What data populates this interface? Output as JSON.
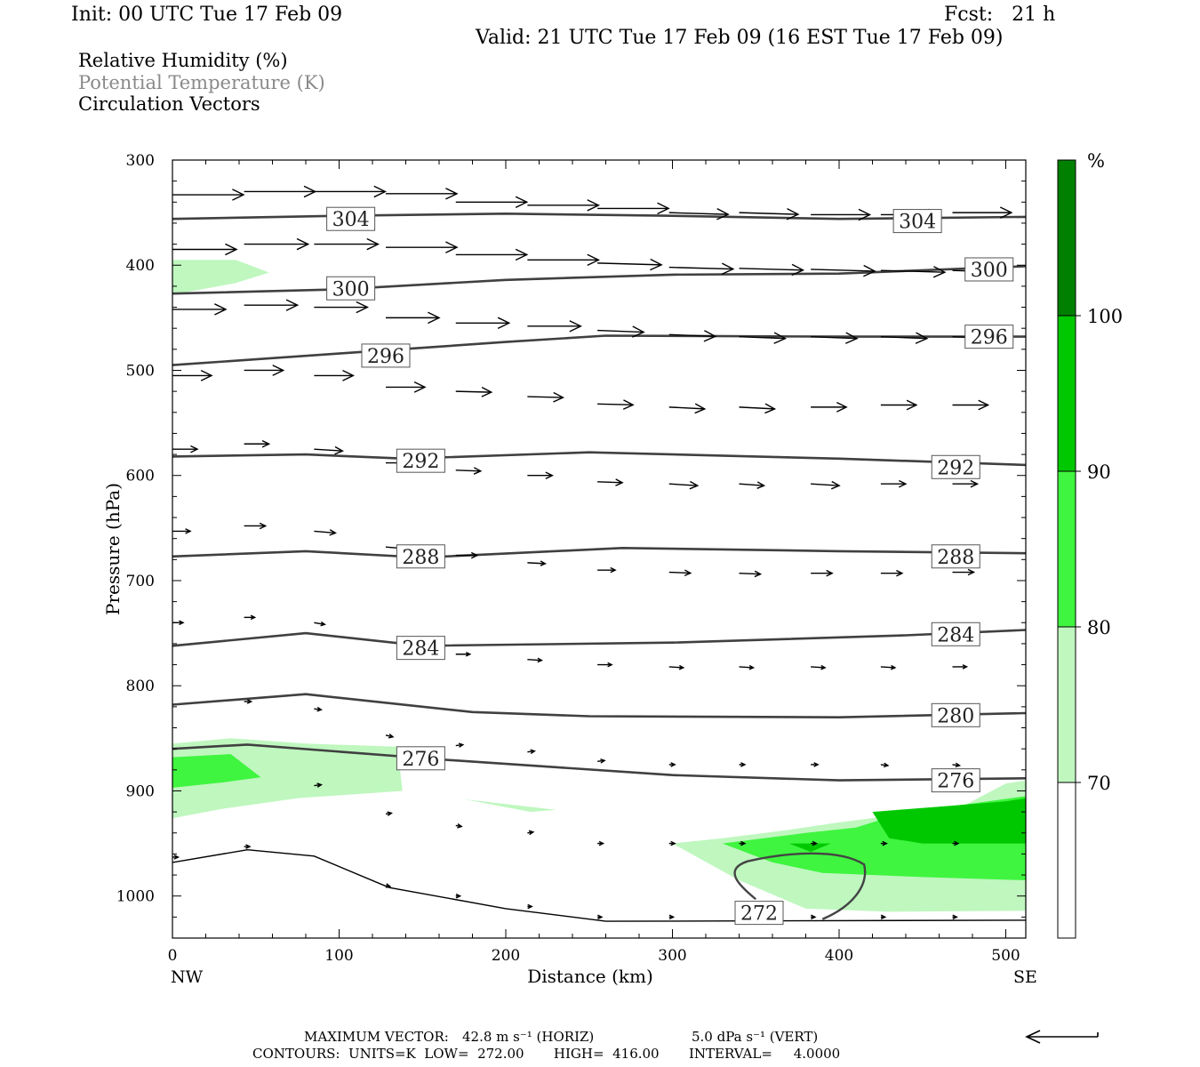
{
  "header": {
    "init": "Init: 00 UTC Tue 17 Feb 09",
    "fcst": "Fcst:   21 h",
    "valid": "Valid: 21 UTC Tue 17 Feb 09 (16 EST Tue 17 Feb 09)"
  },
  "legend": {
    "rh": "Relative Humidity (%)",
    "theta": "Potential Temperature (K)",
    "vectors": "Circulation Vectors"
  },
  "footer": {
    "max_vector_label": "MAXIMUM VECTOR:",
    "max_horiz": "42.8 m s⁻¹ (HORIZ)",
    "max_vert": "5.0 dPa s⁻¹ (VERT)",
    "contours": "CONTOURS:  UNITS=K  LOW=  272.00       HIGH=  416.00       INTERVAL=     4.0000"
  },
  "colors": {
    "rh_70": "#bff7bf",
    "rh_80": "#3ff53f",
    "rh_90": "#00c800",
    "rh_100": "#008000",
    "contour": "#404040",
    "vector": "#000000"
  },
  "chart_data": {
    "type": "cross-section",
    "xlabel": "Distance (km)",
    "ylabel": "Pressure (hPa)",
    "xlim": [
      0,
      512
    ],
    "ylim": [
      1040,
      300
    ],
    "x_ticks": [
      0,
      100,
      200,
      300,
      400,
      500
    ],
    "y_ticks": [
      300,
      400,
      500,
      600,
      700,
      800,
      900,
      1000
    ],
    "x_end_labels": {
      "left": "NW",
      "right": "SE"
    },
    "colorbar": {
      "unit": "%",
      "levels": [
        70,
        80,
        90,
        100
      ],
      "colors": [
        "#ffffff",
        "#bff7bf",
        "#3ff53f",
        "#00c800",
        "#008000"
      ]
    },
    "theta_contours": [
      {
        "value": 304,
        "points": [
          [
            0,
            356
          ],
          [
            100,
            353
          ],
          [
            200,
            351
          ],
          [
            300,
            353
          ],
          [
            400,
            356
          ],
          [
            512,
            354
          ]
        ],
        "labels": [
          [
            107,
            356
          ],
          [
            447,
            358
          ]
        ]
      },
      {
        "value": 300,
        "points": [
          [
            0,
            427
          ],
          [
            100,
            423
          ],
          [
            200,
            414
          ],
          [
            300,
            409
          ],
          [
            400,
            408
          ],
          [
            512,
            401
          ]
        ],
        "labels": [
          [
            107,
            422
          ],
          [
            490,
            404
          ]
        ]
      },
      {
        "value": 296,
        "points": [
          [
            0,
            495
          ],
          [
            100,
            484
          ],
          [
            200,
            473
          ],
          [
            260,
            467
          ],
          [
            400,
            468
          ],
          [
            512,
            468
          ]
        ],
        "labels": [
          [
            128,
            486
          ],
          [
            490,
            468
          ]
        ]
      },
      {
        "value": 292,
        "points": [
          [
            0,
            582
          ],
          [
            80,
            580
          ],
          [
            140,
            584
          ],
          [
            250,
            578
          ],
          [
            400,
            584
          ],
          [
            512,
            590
          ]
        ],
        "labels": [
          [
            149,
            586
          ],
          [
            470,
            592
          ]
        ]
      },
      {
        "value": 288,
        "points": [
          [
            0,
            677
          ],
          [
            80,
            672
          ],
          [
            150,
            678
          ],
          [
            270,
            669
          ],
          [
            400,
            672
          ],
          [
            512,
            674
          ]
        ],
        "labels": [
          [
            149,
            677
          ],
          [
            470,
            677
          ]
        ]
      },
      {
        "value": 284,
        "points": [
          [
            0,
            762
          ],
          [
            80,
            750
          ],
          [
            150,
            762
          ],
          [
            300,
            759
          ],
          [
            440,
            752
          ],
          [
            512,
            747
          ]
        ],
        "labels": [
          [
            149,
            764
          ],
          [
            470,
            751
          ]
        ]
      },
      {
        "value": 280,
        "points": [
          [
            0,
            818
          ],
          [
            80,
            808
          ],
          [
            180,
            825
          ],
          [
            250,
            829
          ],
          [
            400,
            830
          ],
          [
            512,
            826
          ]
        ],
        "labels": [
          [
            470,
            828
          ]
        ]
      },
      {
        "value": 276,
        "points": [
          [
            0,
            860
          ],
          [
            45,
            856
          ],
          [
            160,
            870
          ],
          [
            300,
            885
          ],
          [
            400,
            890
          ],
          [
            512,
            888
          ]
        ],
        "labels": [
          [
            149,
            869
          ],
          [
            470,
            890
          ]
        ]
      },
      {
        "value": 272,
        "points": [
          [
            0,
            968
          ],
          [
            45,
            956
          ],
          [
            85,
            962
          ],
          [
            130,
            992
          ],
          [
            200,
            1012
          ],
          [
            260,
            1024
          ],
          [
            512,
            1023
          ]
        ],
        "labels": [
          [
            352,
            1016
          ]
        ]
      }
    ],
    "rh_region_70_80": [
      {
        "points": [
          [
            0,
            395
          ],
          [
            38,
            395
          ],
          [
            58,
            407
          ],
          [
            38,
            417
          ],
          [
            0,
            428
          ]
        ]
      },
      {
        "points": [
          [
            0,
            855
          ],
          [
            35,
            850
          ],
          [
            80,
            855
          ],
          [
            135,
            858
          ],
          [
            138,
            900
          ],
          [
            75,
            907
          ],
          [
            30,
            917
          ],
          [
            0,
            926
          ]
        ]
      },
      {
        "points": [
          [
            175,
            908
          ],
          [
            230,
            918
          ],
          [
            215,
            920
          ]
        ]
      },
      {
        "points": [
          [
            300,
            950
          ],
          [
            330,
            945
          ],
          [
            370,
            937
          ],
          [
            400,
            930
          ],
          [
            430,
            924
          ],
          [
            470,
            918
          ],
          [
            500,
            893
          ],
          [
            512,
            890
          ],
          [
            512,
            1014
          ],
          [
            430,
            1015
          ],
          [
            380,
            1012
          ],
          [
            340,
            985
          ]
        ]
      }
    ],
    "rh_region_80_90": [
      {
        "points": [
          [
            0,
            868
          ],
          [
            35,
            865
          ],
          [
            53,
            887
          ],
          [
            30,
            892
          ],
          [
            0,
            897
          ]
        ]
      },
      {
        "points": [
          [
            330,
            950
          ],
          [
            380,
            940
          ],
          [
            410,
            935
          ],
          [
            440,
            920
          ],
          [
            480,
            912
          ],
          [
            512,
            905
          ],
          [
            512,
            985
          ],
          [
            450,
            982
          ],
          [
            390,
            978
          ],
          [
            360,
            968
          ]
        ]
      }
    ],
    "rh_region_90_100": [
      {
        "points": [
          [
            370,
            950
          ],
          [
            395,
            950
          ],
          [
            383,
            958
          ]
        ]
      },
      {
        "points": [
          [
            420,
            920
          ],
          [
            460,
            915
          ],
          [
            500,
            910
          ],
          [
            512,
            907
          ],
          [
            512,
            950
          ],
          [
            450,
            950
          ],
          [
            430,
            945
          ]
        ]
      }
    ],
    "vectors": [
      {
        "x": 0,
        "p": 333,
        "u": 1.0,
        "w": 0
      },
      {
        "x": 43,
        "p": 330,
        "u": 1.0,
        "w": 0
      },
      {
        "x": 85,
        "p": 330,
        "u": 1.0,
        "w": 0
      },
      {
        "x": 128,
        "p": 332,
        "u": 1.0,
        "w": 0
      },
      {
        "x": 170,
        "p": 340,
        "u": 1.0,
        "w": 0
      },
      {
        "x": 213,
        "p": 343,
        "u": 1.0,
        "w": 0
      },
      {
        "x": 255,
        "p": 346,
        "u": 1.0,
        "w": 0
      },
      {
        "x": 298,
        "p": 350,
        "u": 0.83,
        "w": 2
      },
      {
        "x": 340,
        "p": 350,
        "u": 0.83,
        "w": 2
      },
      {
        "x": 383,
        "p": 352,
        "u": 0.83,
        "w": 0
      },
      {
        "x": 425,
        "p": 352,
        "u": 0.83,
        "w": 0
      },
      {
        "x": 468,
        "p": 350,
        "u": 0.83,
        "w": 0
      },
      {
        "x": 0,
        "p": 385,
        "u": 0.9,
        "w": 0
      },
      {
        "x": 43,
        "p": 380,
        "u": 0.9,
        "w": 0
      },
      {
        "x": 85,
        "p": 380,
        "u": 0.9,
        "w": 0
      },
      {
        "x": 128,
        "p": 383,
        "u": 1.0,
        "w": 0
      },
      {
        "x": 170,
        "p": 390,
        "u": 1.0,
        "w": 0
      },
      {
        "x": 213,
        "p": 395,
        "u": 1.0,
        "w": 0
      },
      {
        "x": 255,
        "p": 398,
        "u": 0.9,
        "w": 2
      },
      {
        "x": 298,
        "p": 402,
        "u": 0.9,
        "w": 2
      },
      {
        "x": 340,
        "p": 403,
        "u": 0.9,
        "w": 2
      },
      {
        "x": 383,
        "p": 404,
        "u": 0.9,
        "w": 2
      },
      {
        "x": 425,
        "p": 405,
        "u": 0.9,
        "w": 2
      },
      {
        "x": 468,
        "p": 405,
        "u": 0.8,
        "w": 2
      },
      {
        "x": 0,
        "p": 442,
        "u": 0.75,
        "w": 0
      },
      {
        "x": 43,
        "p": 438,
        "u": 0.75,
        "w": 0
      },
      {
        "x": 85,
        "p": 440,
        "u": 0.75,
        "w": 0
      },
      {
        "x": 128,
        "p": 450,
        "u": 0.75,
        "w": 0
      },
      {
        "x": 170,
        "p": 455,
        "u": 0.75,
        "w": 0
      },
      {
        "x": 213,
        "p": 458,
        "u": 0.75,
        "w": 0
      },
      {
        "x": 255,
        "p": 462,
        "u": 0.65,
        "w": 2
      },
      {
        "x": 298,
        "p": 466,
        "u": 0.65,
        "w": 2
      },
      {
        "x": 340,
        "p": 468,
        "u": 0.65,
        "w": 2
      },
      {
        "x": 383,
        "p": 468,
        "u": 0.65,
        "w": 2
      },
      {
        "x": 425,
        "p": 468,
        "u": 0.65,
        "w": 2
      },
      {
        "x": 468,
        "p": 468,
        "u": 0.65,
        "w": 2
      },
      {
        "x": 0,
        "p": 505,
        "u": 0.55,
        "w": 0
      },
      {
        "x": 43,
        "p": 500,
        "u": 0.55,
        "w": 0
      },
      {
        "x": 85,
        "p": 505,
        "u": 0.55,
        "w": 0
      },
      {
        "x": 128,
        "p": 516,
        "u": 0.55,
        "w": 0
      },
      {
        "x": 170,
        "p": 520,
        "u": 0.5,
        "w": 1
      },
      {
        "x": 213,
        "p": 525,
        "u": 0.5,
        "w": 1
      },
      {
        "x": 255,
        "p": 532,
        "u": 0.5,
        "w": 1
      },
      {
        "x": 298,
        "p": 535,
        "u": 0.5,
        "w": 2
      },
      {
        "x": 340,
        "p": 535,
        "u": 0.5,
        "w": 2
      },
      {
        "x": 383,
        "p": 535,
        "u": 0.5,
        "w": 0
      },
      {
        "x": 425,
        "p": 533,
        "u": 0.5,
        "w": 0
      },
      {
        "x": 468,
        "p": 533,
        "u": 0.5,
        "w": 0
      },
      {
        "x": 0,
        "p": 575,
        "u": 0.35,
        "w": 0
      },
      {
        "x": 43,
        "p": 570,
        "u": 0.35,
        "w": 0
      },
      {
        "x": 85,
        "p": 575,
        "u": 0.4,
        "w": 2
      },
      {
        "x": 128,
        "p": 588,
        "u": 0.4,
        "w": 0
      },
      {
        "x": 170,
        "p": 595,
        "u": 0.35,
        "w": 1
      },
      {
        "x": 213,
        "p": 600,
        "u": 0.35,
        "w": 0
      },
      {
        "x": 255,
        "p": 606,
        "u": 0.35,
        "w": 1
      },
      {
        "x": 298,
        "p": 608,
        "u": 0.4,
        "w": 2
      },
      {
        "x": 340,
        "p": 608,
        "u": 0.35,
        "w": 2
      },
      {
        "x": 383,
        "p": 608,
        "u": 0.4,
        "w": 2
      },
      {
        "x": 425,
        "p": 608,
        "u": 0.35,
        "w": 0
      },
      {
        "x": 468,
        "p": 608,
        "u": 0.35,
        "w": 0
      },
      {
        "x": 0,
        "p": 653,
        "u": 0.25,
        "w": 0
      },
      {
        "x": 43,
        "p": 648,
        "u": 0.3,
        "w": 0
      },
      {
        "x": 85,
        "p": 653,
        "u": 0.3,
        "w": 2
      },
      {
        "x": 128,
        "p": 668,
        "u": 0.3,
        "w": 2
      },
      {
        "x": 170,
        "p": 676,
        "u": 0.3,
        "w": 0
      },
      {
        "x": 213,
        "p": 683,
        "u": 0.25,
        "w": 1
      },
      {
        "x": 255,
        "p": 690,
        "u": 0.25,
        "w": 0
      },
      {
        "x": 298,
        "p": 692,
        "u": 0.3,
        "w": 1
      },
      {
        "x": 340,
        "p": 693,
        "u": 0.3,
        "w": 1
      },
      {
        "x": 383,
        "p": 693,
        "u": 0.3,
        "w": 0
      },
      {
        "x": 425,
        "p": 693,
        "u": 0.3,
        "w": 0
      },
      {
        "x": 468,
        "p": 692,
        "u": 0.3,
        "w": 0
      },
      {
        "x": 0,
        "p": 740,
        "u": 0.15,
        "w": 0
      },
      {
        "x": 43,
        "p": 735,
        "u": 0.15,
        "w": 0
      },
      {
        "x": 85,
        "p": 740,
        "u": 0.15,
        "w": 2
      },
      {
        "x": 170,
        "p": 770,
        "u": 0.2,
        "w": 0
      },
      {
        "x": 213,
        "p": 775,
        "u": 0.2,
        "w": 1
      },
      {
        "x": 255,
        "p": 780,
        "u": 0.2,
        "w": 0
      },
      {
        "x": 298,
        "p": 782,
        "u": 0.2,
        "w": 1
      },
      {
        "x": 340,
        "p": 782,
        "u": 0.2,
        "w": 1
      },
      {
        "x": 383,
        "p": 782,
        "u": 0.2,
        "w": 1
      },
      {
        "x": 425,
        "p": 782,
        "u": 0.2,
        "w": 1
      },
      {
        "x": 468,
        "p": 782,
        "u": 0.2,
        "w": 0
      },
      {
        "x": 43,
        "p": 815,
        "u": 0.1,
        "w": 0
      },
      {
        "x": 85,
        "p": 822,
        "u": 0.1,
        "w": 1
      },
      {
        "x": 128,
        "p": 847,
        "u": 0.1,
        "w": 2
      },
      {
        "x": 170,
        "p": 857,
        "u": 0.1,
        "w": -1
      },
      {
        "x": 213,
        "p": 863,
        "u": 0.1,
        "w": -1
      },
      {
        "x": 255,
        "p": 872,
        "u": 0.1,
        "w": -1
      },
      {
        "x": 298,
        "p": 875,
        "u": 0.08,
        "w": 0
      },
      {
        "x": 340,
        "p": 875,
        "u": 0.08,
        "w": 0
      },
      {
        "x": 383,
        "p": 875,
        "u": 0.1,
        "w": 0
      },
      {
        "x": 425,
        "p": 875,
        "u": 0.1,
        "w": 1
      },
      {
        "x": 468,
        "p": 875,
        "u": 0.1,
        "w": 1
      },
      {
        "x": 85,
        "p": 895,
        "u": 0.1,
        "w": -1
      },
      {
        "x": 128,
        "p": 922,
        "u": 0.08,
        "w": -1
      },
      {
        "x": 170,
        "p": 933,
        "u": 0.08,
        "w": 1
      },
      {
        "x": 213,
        "p": 940,
        "u": 0.08,
        "w": -1
      },
      {
        "x": 255,
        "p": 950,
        "u": 0.08,
        "w": 0
      },
      {
        "x": 298,
        "p": 950,
        "u": 0.08,
        "w": 0
      },
      {
        "x": 340,
        "p": 950,
        "u": 0.08,
        "w": 0
      },
      {
        "x": 383,
        "p": 950,
        "u": 0.08,
        "w": 0
      },
      {
        "x": 425,
        "p": 950,
        "u": 0.08,
        "w": 0
      },
      {
        "x": 468,
        "p": 950,
        "u": 0.08,
        "w": 0
      },
      {
        "x": 0,
        "p": 963,
        "u": 0.08,
        "w": 0
      },
      {
        "x": 43,
        "p": 953,
        "u": 0.08,
        "w": 0
      },
      {
        "x": 128,
        "p": 990,
        "u": 0.06,
        "w": 1
      },
      {
        "x": 170,
        "p": 1000,
        "u": 0.06,
        "w": 0
      },
      {
        "x": 213,
        "p": 1010,
        "u": 0.06,
        "w": 0
      },
      {
        "x": 255,
        "p": 1020,
        "u": 0.06,
        "w": 0
      },
      {
        "x": 298,
        "p": 1020,
        "u": 0.06,
        "w": 0
      },
      {
        "x": 340,
        "p": 1020,
        "u": 0.06,
        "w": 0
      },
      {
        "x": 383,
        "p": 1020,
        "u": 0.06,
        "w": 0
      },
      {
        "x": 425,
        "p": 1020,
        "u": 0.06,
        "w": 0
      },
      {
        "x": 468,
        "p": 1020,
        "u": 0.06,
        "w": 0
      }
    ]
  }
}
